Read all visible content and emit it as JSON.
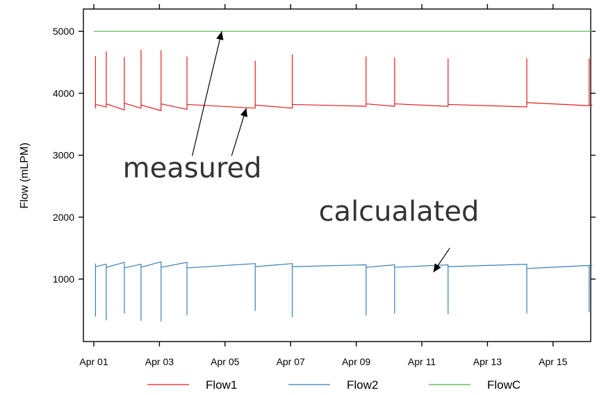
{
  "chart_data": {
    "type": "line",
    "title": "",
    "xlabel": "",
    "ylabel": "Flow (mLPM)",
    "xlim": [
      0,
      15.5
    ],
    "ylim": [
      -100,
      5350
    ],
    "x_ticks": [
      {
        "label": "Apr 01",
        "value": 0
      },
      {
        "label": "Apr 03",
        "value": 2
      },
      {
        "label": "Apr 05",
        "value": 4
      },
      {
        "label": "Apr 07",
        "value": 6
      },
      {
        "label": "Apr 09",
        "value": 8
      },
      {
        "label": "Apr 11",
        "value": 10
      },
      {
        "label": "Apr 13",
        "value": 12
      },
      {
        "label": "Apr 15",
        "value": 14
      }
    ],
    "y_ticks": [
      {
        "label": "1000",
        "value": 1000
      },
      {
        "label": "2000",
        "value": 2000
      },
      {
        "label": "3000",
        "value": 3000
      },
      {
        "label": "4000",
        "value": 4000
      },
      {
        "label": "5000",
        "value": 5000
      }
    ],
    "grid": false,
    "legend_position": "bottom",
    "series": [
      {
        "name": "Flow1",
        "color": "#e41a1c",
        "segments": [
          {
            "x0": 0.05,
            "x1": 0.38,
            "y0": 3820,
            "y1": 3780,
            "spike": 4600,
            "dip": 3760
          },
          {
            "x0": 0.38,
            "x1": 0.93,
            "y0": 3830,
            "y1": 3730,
            "spike": 4670
          },
          {
            "x0": 0.93,
            "x1": 1.44,
            "y0": 3840,
            "y1": 3760,
            "spike": 4580
          },
          {
            "x0": 1.44,
            "x1": 2.05,
            "y0": 3810,
            "y1": 3720,
            "spike": 4700
          },
          {
            "x0": 2.05,
            "x1": 2.84,
            "y0": 3830,
            "y1": 3740,
            "spike": 4690
          },
          {
            "x0": 2.84,
            "x1": 4.92,
            "y0": 3820,
            "y1": 3760,
            "spike": 4590
          },
          {
            "x0": 4.92,
            "x1": 6.05,
            "y0": 3810,
            "y1": 3760,
            "spike": 4520
          },
          {
            "x0": 6.05,
            "x1": 8.3,
            "y0": 3820,
            "y1": 3790,
            "spike": 4620
          },
          {
            "x0": 8.3,
            "x1": 9.17,
            "y0": 3830,
            "y1": 3790,
            "spike": 4590
          },
          {
            "x0": 9.17,
            "x1": 10.8,
            "y0": 3830,
            "y1": 3790,
            "spike": 4570
          },
          {
            "x0": 10.8,
            "x1": 13.2,
            "y0": 3820,
            "y1": 3780,
            "spike": 4560
          },
          {
            "x0": 13.2,
            "x1": 15.1,
            "y0": 3850,
            "y1": 3800,
            "spike": 4560
          },
          {
            "x0": 15.1,
            "x1": 15.2,
            "y0": 3810,
            "y1": 3810,
            "spike": 4560
          }
        ]
      },
      {
        "name": "Flow2",
        "color": "#377eb8",
        "segments": [
          {
            "x0": 0.05,
            "x1": 0.38,
            "y0": 1200,
            "y1": 1240,
            "dip": 400,
            "spike": 1250
          },
          {
            "x0": 0.38,
            "x1": 0.93,
            "y0": 1190,
            "y1": 1270,
            "dip": 340
          },
          {
            "x0": 0.93,
            "x1": 1.44,
            "y0": 1180,
            "y1": 1240,
            "dip": 450
          },
          {
            "x0": 1.44,
            "x1": 2.05,
            "y0": 1190,
            "y1": 1280,
            "dip": 330
          },
          {
            "x0": 2.05,
            "x1": 2.84,
            "y0": 1190,
            "y1": 1270,
            "dip": 320
          },
          {
            "x0": 2.84,
            "x1": 4.92,
            "y0": 1180,
            "y1": 1250,
            "dip": 420
          },
          {
            "x0": 4.92,
            "x1": 6.05,
            "y0": 1200,
            "y1": 1250,
            "dip": 490
          },
          {
            "x0": 6.05,
            "x1": 8.3,
            "y0": 1200,
            "y1": 1230,
            "dip": 390
          },
          {
            "x0": 8.3,
            "x1": 9.17,
            "y0": 1190,
            "y1": 1230,
            "dip": 420
          },
          {
            "x0": 9.17,
            "x1": 10.8,
            "y0": 1190,
            "y1": 1230,
            "dip": 450
          },
          {
            "x0": 10.8,
            "x1": 13.2,
            "y0": 1200,
            "y1": 1240,
            "dip": 440
          },
          {
            "x0": 13.2,
            "x1": 15.1,
            "y0": 1170,
            "y1": 1220,
            "dip": 450
          },
          {
            "x0": 15.1,
            "x1": 15.2,
            "y0": 1220,
            "y1": 1220,
            "dip": 470
          }
        ]
      },
      {
        "name": "FlowC",
        "color": "#4daf4a",
        "segments": [
          {
            "x0": 0.0,
            "x1": 15.2,
            "y0": 5000,
            "y1": 5000
          }
        ]
      }
    ],
    "annotations": [
      {
        "text": "measured",
        "x": 3.0,
        "y": 2640,
        "arrows": [
          [
            3.0,
            2990,
            3.9,
            5000
          ],
          [
            4.2,
            2990,
            4.65,
            3760
          ]
        ]
      },
      {
        "text": "calcualated",
        "x": 9.3,
        "y": 1940,
        "arrows": [
          [
            10.85,
            1500,
            10.35,
            1110
          ]
        ]
      }
    ]
  }
}
